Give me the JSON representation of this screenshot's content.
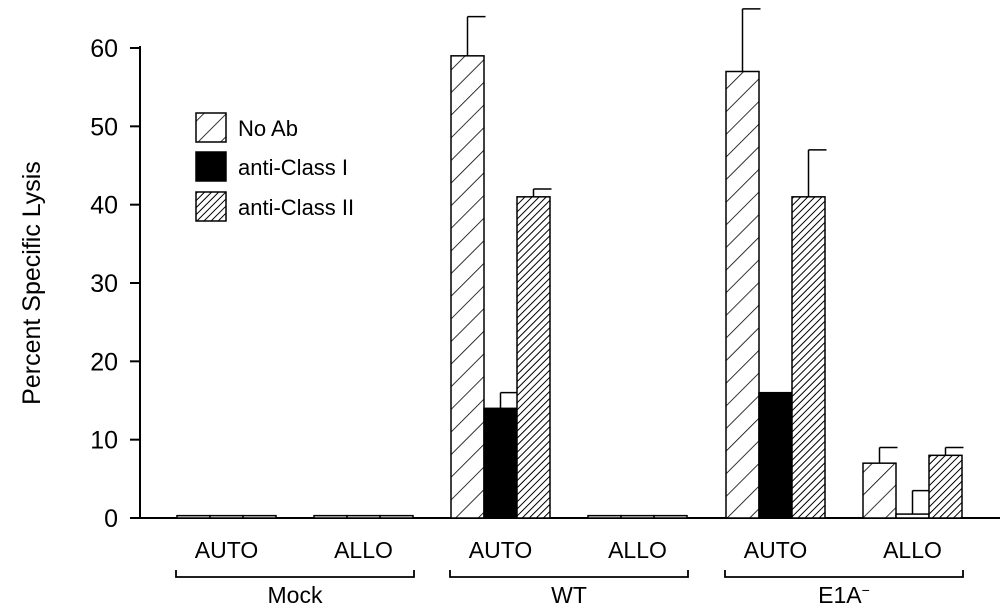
{
  "chart_data": {
    "type": "bar",
    "ylabel": "Percent Specific Lysis",
    "xlabel": "",
    "ylim": [
      0,
      60
    ],
    "yticks": [
      0,
      10,
      20,
      30,
      40,
      50,
      60
    ],
    "grid": false,
    "legend_position": "top-left",
    "groups": [
      {
        "label": "Mock",
        "subcategories": [
          "AUTO",
          "ALLO"
        ]
      },
      {
        "label": "WT",
        "subcategories": [
          "AUTO",
          "ALLO"
        ]
      },
      {
        "label": "E1A",
        "label_superscript": "−",
        "subcategories": [
          "AUTO",
          "ALLO"
        ]
      }
    ],
    "categories": [
      "Mock AUTO",
      "Mock ALLO",
      "WT AUTO",
      "WT ALLO",
      "E1A⁻ AUTO",
      "E1A⁻ ALLO"
    ],
    "series": [
      {
        "name": "No Ab",
        "pattern": "diagonal-hatch",
        "values": [
          0.3,
          0.3,
          59,
          0.3,
          57,
          7
        ],
        "errors": [
          0,
          0,
          5,
          0,
          8,
          2
        ]
      },
      {
        "name": "anti-Class I",
        "pattern": "solid-black",
        "values": [
          0.3,
          0.3,
          14,
          0.3,
          16,
          0.5
        ],
        "errors": [
          0,
          0,
          2,
          0,
          0,
          3
        ]
      },
      {
        "name": "anti-Class II",
        "pattern": "dense-hatch",
        "values": [
          0.3,
          0.3,
          41,
          0.3,
          41,
          8
        ],
        "errors": [
          0,
          0,
          1,
          0,
          6,
          1
        ]
      }
    ]
  }
}
